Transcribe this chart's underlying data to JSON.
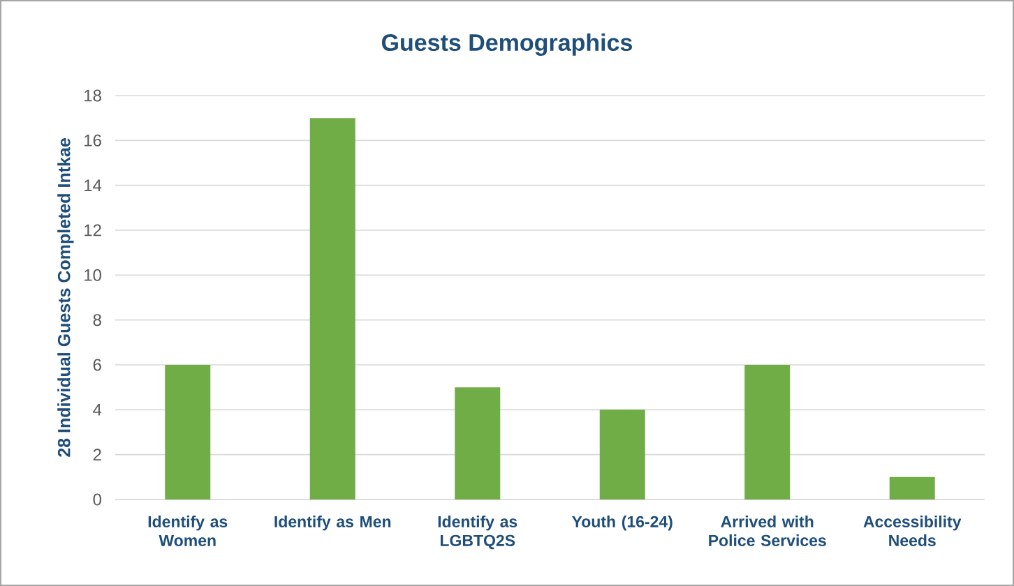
{
  "chart_data": {
    "type": "bar",
    "title": "Guests Demographics",
    "ylabel": "28 Individual Guests Completed Intkae",
    "categories": [
      "Identify as Women",
      "Identify as Men",
      "Identify as LGBTQ2S",
      "Youth (16-24)",
      "Arrived with Police Services",
      "Accessibility Needs"
    ],
    "values": [
      6,
      17,
      5,
      4,
      6,
      1
    ],
    "color": "#70ad47",
    "ylim": [
      0,
      18
    ],
    "yticks": [
      0,
      2,
      4,
      6,
      8,
      10,
      12,
      14,
      16,
      18
    ],
    "grid": "y"
  }
}
